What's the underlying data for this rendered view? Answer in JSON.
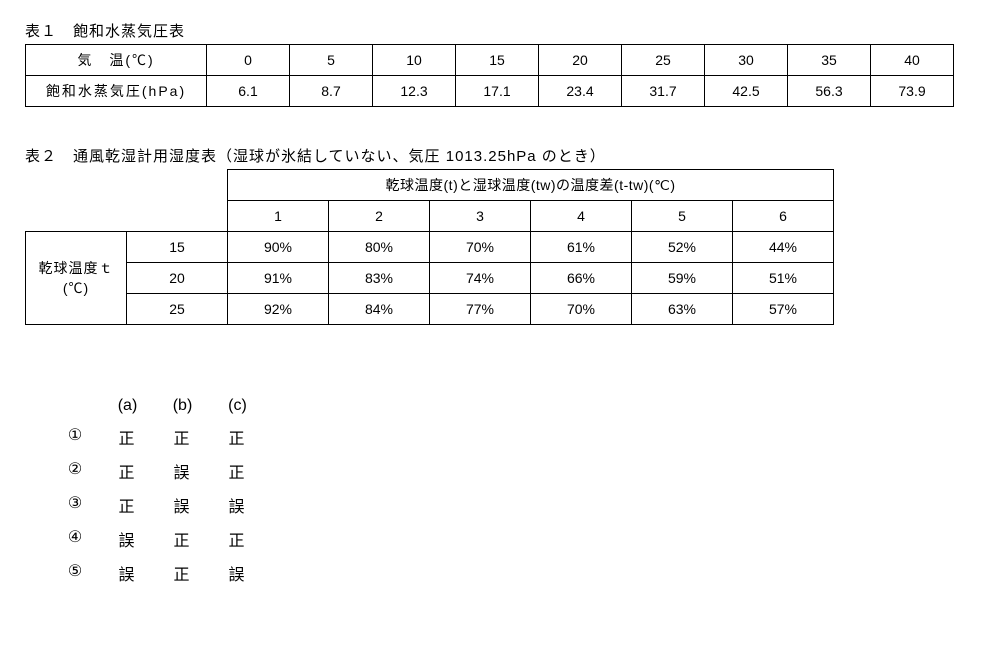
{
  "table1": {
    "title": "表１　飽和水蒸気圧表",
    "row_labels": [
      "気　温(℃)",
      "飽和水蒸気圧(hPa)"
    ],
    "temps": [
      "0",
      "5",
      "10",
      "15",
      "20",
      "25",
      "30",
      "35",
      "40"
    ],
    "pressures": [
      "6.1",
      "8.7",
      "12.3",
      "17.1",
      "23.4",
      "31.7",
      "42.5",
      "56.3",
      "73.9"
    ]
  },
  "table2": {
    "title": "表２　通風乾湿計用湿度表（湿球が氷結していない、気圧 1013.25hPa のとき）",
    "diff_header": "乾球温度(t)と湿球温度(tw)の温度差(t-tw)(℃)",
    "row_header": "乾球温度ｔ(℃)",
    "diffs": [
      "1",
      "2",
      "3",
      "4",
      "5",
      "6"
    ],
    "rows": [
      {
        "t": "15",
        "vals": [
          "90%",
          "80%",
          "70%",
          "61%",
          "52%",
          "44%"
        ]
      },
      {
        "t": "20",
        "vals": [
          "91%",
          "83%",
          "74%",
          "66%",
          "59%",
          "51%"
        ]
      },
      {
        "t": "25",
        "vals": [
          "92%",
          "84%",
          "77%",
          "70%",
          "63%",
          "57%"
        ]
      }
    ]
  },
  "answers": {
    "headers": [
      "(a)",
      "(b)",
      "(c)"
    ],
    "rows": [
      {
        "idx": "①",
        "vals": [
          "正",
          "正",
          "正"
        ]
      },
      {
        "idx": "②",
        "vals": [
          "正",
          "誤",
          "正"
        ]
      },
      {
        "idx": "③",
        "vals": [
          "正",
          "誤",
          "誤"
        ]
      },
      {
        "idx": "④",
        "vals": [
          "誤",
          "正",
          "正"
        ]
      },
      {
        "idx": "⑤",
        "vals": [
          "誤",
          "正",
          "誤"
        ]
      }
    ]
  }
}
